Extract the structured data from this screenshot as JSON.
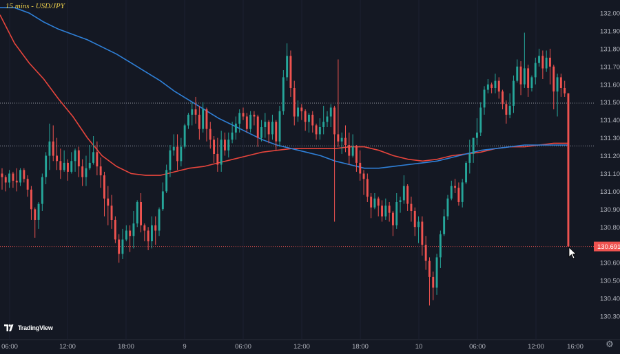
{
  "title": "15 mins - USD/JPY",
  "branding": {
    "logo_text": "TradingView"
  },
  "colors": {
    "background": "#141823",
    "up": "#26a69a",
    "down": "#ef5350",
    "ma_red": "#e8453c",
    "ma_blue": "#2f80d8",
    "axis_text": "#b2b5be",
    "level_line": "#b8bcc7",
    "price_tag": "#ef5350"
  },
  "icons": {
    "settings": "gear-icon"
  },
  "chart_data": {
    "type": "candlestick",
    "symbol": "USD/JPY",
    "interval": "15 mins",
    "ylim": [
      130.27,
      132.03
    ],
    "y_ticks": [
      "132.000",
      "131.900",
      "131.800",
      "131.700",
      "131.600",
      "131.500",
      "131.400",
      "131.300",
      "131.200",
      "131.100",
      "131.000",
      "130.900",
      "130.800",
      "130.700",
      "130.600",
      "130.500",
      "130.400",
      "130.300"
    ],
    "x_ticks": [
      "06:00",
      "12:00",
      "18:00",
      "9",
      "06:00",
      "12:00",
      "18:00",
      "10",
      "06:00",
      "12:00",
      "16:00"
    ],
    "last_price": "130.691",
    "horizontal_levels": [
      131.495,
      131.255,
      130.691
    ],
    "moving_averages": [
      {
        "color": "red",
        "points": [
          [
            0,
            131.99
          ],
          [
            1,
            131.83
          ],
          [
            2,
            131.72
          ],
          [
            3,
            131.63
          ],
          [
            4,
            131.52
          ],
          [
            5,
            131.42
          ],
          [
            6,
            131.3
          ],
          [
            7,
            131.2
          ],
          [
            8,
            131.14
          ],
          [
            9,
            131.1
          ],
          [
            10,
            131.09
          ],
          [
            11,
            131.09
          ],
          [
            12,
            131.11
          ],
          [
            13,
            131.13
          ],
          [
            14,
            131.14
          ],
          [
            15,
            131.16
          ],
          [
            16,
            131.18
          ],
          [
            17,
            131.2
          ],
          [
            18,
            131.22
          ],
          [
            19,
            131.23
          ],
          [
            20,
            131.24
          ],
          [
            21,
            131.24
          ],
          [
            22,
            131.24
          ],
          [
            23,
            131.24
          ],
          [
            24,
            131.25
          ],
          [
            25,
            131.25
          ],
          [
            26,
            131.23
          ],
          [
            27,
            131.2
          ],
          [
            28,
            131.18
          ],
          [
            29,
            131.17
          ],
          [
            30,
            131.18
          ],
          [
            31,
            131.2
          ],
          [
            32,
            131.21
          ],
          [
            33,
            131.22
          ],
          [
            34,
            131.24
          ],
          [
            35,
            131.25
          ],
          [
            36,
            131.25
          ],
          [
            37,
            131.26
          ],
          [
            38,
            131.27
          ],
          [
            39,
            131.27
          ]
        ]
      },
      {
        "color": "blue",
        "points": [
          [
            0,
            132.03
          ],
          [
            1,
            132.03
          ],
          [
            2,
            132.0
          ],
          [
            3,
            131.95
          ],
          [
            4,
            131.91
          ],
          [
            5,
            131.88
          ],
          [
            6,
            131.85
          ],
          [
            7,
            131.81
          ],
          [
            8,
            131.77
          ],
          [
            9,
            131.72
          ],
          [
            10,
            131.67
          ],
          [
            11,
            131.62
          ],
          [
            12,
            131.56
          ],
          [
            13,
            131.51
          ],
          [
            14,
            131.46
          ],
          [
            15,
            131.41
          ],
          [
            16,
            131.37
          ],
          [
            17,
            131.33
          ],
          [
            18,
            131.29
          ],
          [
            19,
            131.26
          ],
          [
            20,
            131.24
          ],
          [
            21,
            131.22
          ],
          [
            22,
            131.2
          ],
          [
            23,
            131.17
          ],
          [
            24,
            131.15
          ],
          [
            25,
            131.13
          ],
          [
            26,
            131.13
          ],
          [
            27,
            131.14
          ],
          [
            28,
            131.15
          ],
          [
            29,
            131.16
          ],
          [
            30,
            131.17
          ],
          [
            31,
            131.19
          ],
          [
            32,
            131.21
          ],
          [
            33,
            131.23
          ],
          [
            34,
            131.24
          ],
          [
            35,
            131.25
          ],
          [
            36,
            131.26
          ],
          [
            37,
            131.26
          ],
          [
            38,
            131.26
          ],
          [
            39,
            131.26
          ]
        ]
      }
    ],
    "candles": [
      [
        131.1,
        131.08,
        131.13,
        131.01
      ],
      [
        131.08,
        131.05,
        131.09,
        131.0
      ],
      [
        131.05,
        131.1,
        131.12,
        131.02
      ],
      [
        131.1,
        131.06,
        131.11,
        131.02
      ],
      [
        131.06,
        131.05,
        131.13,
        131.0
      ],
      [
        131.05,
        131.12,
        131.13,
        131.03
      ],
      [
        131.12,
        131.07,
        131.13,
        131.05
      ],
      [
        131.07,
        131.01,
        131.09,
        130.97
      ],
      [
        131.01,
        130.9,
        131.03,
        130.84
      ],
      [
        130.9,
        130.84,
        130.91,
        130.74
      ],
      [
        130.84,
        130.93,
        130.94,
        130.79
      ],
      [
        130.93,
        131.08,
        131.1,
        130.89
      ],
      [
        131.08,
        131.2,
        131.22,
        131.04
      ],
      [
        131.2,
        131.28,
        131.38,
        131.12
      ],
      [
        131.28,
        131.2,
        131.37,
        131.17
      ],
      [
        131.2,
        131.17,
        131.3,
        131.12
      ],
      [
        131.17,
        131.12,
        131.24,
        131.07
      ],
      [
        131.12,
        131.16,
        131.23,
        131.11
      ],
      [
        131.16,
        131.11,
        131.18,
        131.06
      ],
      [
        131.11,
        131.17,
        131.22,
        131.1
      ],
      [
        131.17,
        131.23,
        131.24,
        131.11
      ],
      [
        131.23,
        131.14,
        131.25,
        131.08
      ],
      [
        131.14,
        131.08,
        131.18,
        131.03
      ],
      [
        131.08,
        131.13,
        131.2,
        131.03
      ],
      [
        131.13,
        131.16,
        131.26,
        131.12
      ],
      [
        131.16,
        131.22,
        131.31,
        131.15
      ],
      [
        131.22,
        131.14,
        131.28,
        131.09
      ],
      [
        131.14,
        131.09,
        131.19,
        131.02
      ],
      [
        131.09,
        130.96,
        131.11,
        130.86
      ],
      [
        130.96,
        130.92,
        131.03,
        130.81
      ],
      [
        130.92,
        130.84,
        130.98,
        130.79
      ],
      [
        130.84,
        130.73,
        130.86,
        130.71
      ],
      [
        130.73,
        130.65,
        130.76,
        130.6
      ],
      [
        130.65,
        130.73,
        130.79,
        130.62
      ],
      [
        130.73,
        130.78,
        130.81,
        130.72
      ],
      [
        130.78,
        130.75,
        130.81,
        130.66
      ],
      [
        130.75,
        130.82,
        130.89,
        130.68
      ],
      [
        130.82,
        130.94,
        130.95,
        130.8
      ],
      [
        130.94,
        130.81,
        130.99,
        130.77
      ],
      [
        130.81,
        130.78,
        130.82,
        130.72
      ],
      [
        130.78,
        130.72,
        130.8,
        130.67
      ],
      [
        130.72,
        130.81,
        130.86,
        130.68
      ],
      [
        130.81,
        130.78,
        130.86,
        130.7
      ],
      [
        130.78,
        130.9,
        130.91,
        130.75
      ],
      [
        130.9,
        131.0,
        131.05,
        130.89
      ],
      [
        131.0,
        131.12,
        131.15,
        130.99
      ],
      [
        131.12,
        131.23,
        131.26,
        131.08
      ],
      [
        131.23,
        131.25,
        131.32,
        131.2
      ],
      [
        131.25,
        131.17,
        131.32,
        131.12
      ],
      [
        131.17,
        131.25,
        131.3,
        131.14
      ],
      [
        131.25,
        131.37,
        131.38,
        131.24
      ],
      [
        131.37,
        131.43,
        131.44,
        131.35
      ],
      [
        131.43,
        131.46,
        131.5,
        131.37
      ],
      [
        131.46,
        131.43,
        131.53,
        131.38
      ],
      [
        131.43,
        131.35,
        131.48,
        131.29
      ],
      [
        131.35,
        131.46,
        131.5,
        131.33
      ],
      [
        131.46,
        131.35,
        131.47,
        131.28
      ],
      [
        131.35,
        131.29,
        131.39,
        131.24
      ],
      [
        131.29,
        131.21,
        131.31,
        131.16
      ],
      [
        131.21,
        131.15,
        131.3,
        131.11
      ],
      [
        131.15,
        131.29,
        131.34,
        131.11
      ],
      [
        131.29,
        131.23,
        131.33,
        131.2
      ],
      [
        131.23,
        131.29,
        131.33,
        131.19
      ],
      [
        131.29,
        131.33,
        131.39,
        131.27
      ],
      [
        131.33,
        131.38,
        131.42,
        131.29
      ],
      [
        131.38,
        131.44,
        131.46,
        131.33
      ],
      [
        131.44,
        131.42,
        131.47,
        131.4
      ],
      [
        131.42,
        131.35,
        131.44,
        131.33
      ],
      [
        131.35,
        131.43,
        131.45,
        131.33
      ],
      [
        131.43,
        131.42,
        131.45,
        131.37
      ],
      [
        131.42,
        131.3,
        131.43,
        131.25
      ],
      [
        131.3,
        131.36,
        131.4,
        131.28
      ],
      [
        131.36,
        131.39,
        131.44,
        131.3
      ],
      [
        131.39,
        131.32,
        131.4,
        131.27
      ],
      [
        131.32,
        131.39,
        131.43,
        131.29
      ],
      [
        131.39,
        131.28,
        131.4,
        131.23
      ],
      [
        131.28,
        131.45,
        131.48,
        131.25
      ],
      [
        131.45,
        131.64,
        131.68,
        131.43
      ],
      [
        131.64,
        131.76,
        131.83,
        131.62
      ],
      [
        131.76,
        131.58,
        131.79,
        131.53
      ],
      [
        131.58,
        131.42,
        131.62,
        131.37
      ],
      [
        131.42,
        131.47,
        131.51,
        131.39
      ],
      [
        131.47,
        131.45,
        131.49,
        131.4
      ],
      [
        131.45,
        131.39,
        131.46,
        131.34
      ],
      [
        131.39,
        131.43,
        131.44,
        131.33
      ],
      [
        131.43,
        131.37,
        131.45,
        131.33
      ],
      [
        131.37,
        131.32,
        131.38,
        131.29
      ],
      [
        131.32,
        131.36,
        131.41,
        131.29
      ],
      [
        131.36,
        131.39,
        131.48,
        131.32
      ],
      [
        131.39,
        131.42,
        131.45,
        131.36
      ],
      [
        131.42,
        131.47,
        131.49,
        131.36
      ],
      [
        131.47,
        131.32,
        131.48,
        130.83
      ],
      [
        131.32,
        131.28,
        131.74,
        131.25
      ],
      [
        131.28,
        131.3,
        131.33,
        131.21
      ],
      [
        131.3,
        131.26,
        131.37,
        131.22
      ],
      [
        131.26,
        131.2,
        131.33,
        131.15
      ],
      [
        131.2,
        131.25,
        131.32,
        131.19
      ],
      [
        131.25,
        131.16,
        131.26,
        131.11
      ],
      [
        131.16,
        131.1,
        131.23,
        131.06
      ],
      [
        131.1,
        131.07,
        131.12,
        130.98
      ],
      [
        131.07,
        130.97,
        131.1,
        130.94
      ],
      [
        130.97,
        130.91,
        130.99,
        130.85
      ],
      [
        130.91,
        130.96,
        130.99,
        130.9
      ],
      [
        130.96,
        130.92,
        130.97,
        130.86
      ],
      [
        130.92,
        130.86,
        130.95,
        130.83
      ],
      [
        130.86,
        130.92,
        130.96,
        130.84
      ],
      [
        130.92,
        130.88,
        130.94,
        130.83
      ],
      [
        130.88,
        130.81,
        130.89,
        130.75
      ],
      [
        130.81,
        130.94,
        130.99,
        130.79
      ],
      [
        130.94,
        130.95,
        130.97,
        130.88
      ],
      [
        130.95,
        131.03,
        131.09,
        130.93
      ],
      [
        131.03,
        130.93,
        131.04,
        130.89
      ],
      [
        130.93,
        130.89,
        130.97,
        130.83
      ],
      [
        130.89,
        130.8,
        130.91,
        130.75
      ],
      [
        130.8,
        130.83,
        130.86,
        130.71
      ],
      [
        130.83,
        130.7,
        130.86,
        130.64
      ],
      [
        130.7,
        130.61,
        130.75,
        130.56
      ],
      [
        130.61,
        130.52,
        130.63,
        130.36
      ],
      [
        130.52,
        130.46,
        130.55,
        130.39
      ],
      [
        130.46,
        130.63,
        130.65,
        130.42
      ],
      [
        130.63,
        130.76,
        130.78,
        130.57
      ],
      [
        130.76,
        130.86,
        130.9,
        130.75
      ],
      [
        130.86,
        130.96,
        130.98,
        130.84
      ],
      [
        130.96,
        131.03,
        131.06,
        130.95
      ],
      [
        131.03,
        131.02,
        131.07,
        130.99
      ],
      [
        131.02,
        130.94,
        131.05,
        130.92
      ],
      [
        130.94,
        131.05,
        131.07,
        130.91
      ],
      [
        131.05,
        131.16,
        131.17,
        131.04
      ],
      [
        131.16,
        131.21,
        131.29,
        131.1
      ],
      [
        131.21,
        131.3,
        131.3,
        131.16
      ],
      [
        131.3,
        131.33,
        131.41,
        131.26
      ],
      [
        131.33,
        131.47,
        131.5,
        131.31
      ],
      [
        131.47,
        131.57,
        131.59,
        131.43
      ],
      [
        131.57,
        131.6,
        131.63,
        131.55
      ],
      [
        131.6,
        131.58,
        131.61,
        131.55
      ],
      [
        131.58,
        131.62,
        131.66,
        131.55
      ],
      [
        131.62,
        131.56,
        131.64,
        131.52
      ],
      [
        131.56,
        131.49,
        131.57,
        131.46
      ],
      [
        131.49,
        131.43,
        131.51,
        131.38
      ],
      [
        131.43,
        131.48,
        131.55,
        131.41
      ],
      [
        131.48,
        131.62,
        131.65,
        131.44
      ],
      [
        131.62,
        131.7,
        131.74,
        131.61
      ],
      [
        131.7,
        131.6,
        131.73,
        131.54
      ],
      [
        131.6,
        131.69,
        131.89,
        131.58
      ],
      [
        131.69,
        131.58,
        131.71,
        131.53
      ],
      [
        131.58,
        131.64,
        131.65,
        131.56
      ],
      [
        131.64,
        131.72,
        131.75,
        131.6
      ],
      [
        131.72,
        131.76,
        131.8,
        131.7
      ],
      [
        131.76,
        131.69,
        131.79,
        131.63
      ],
      [
        131.69,
        131.75,
        131.79,
        131.67
      ],
      [
        131.75,
        131.7,
        131.8,
        131.6
      ],
      [
        131.7,
        131.56,
        131.71,
        131.46
      ],
      [
        131.56,
        131.64,
        131.66,
        131.42
      ],
      [
        131.64,
        131.58,
        131.66,
        131.53
      ],
      [
        131.58,
        131.55,
        131.62,
        131.53
      ],
      [
        131.55,
        130.691,
        131.55,
        130.69
      ]
    ]
  }
}
